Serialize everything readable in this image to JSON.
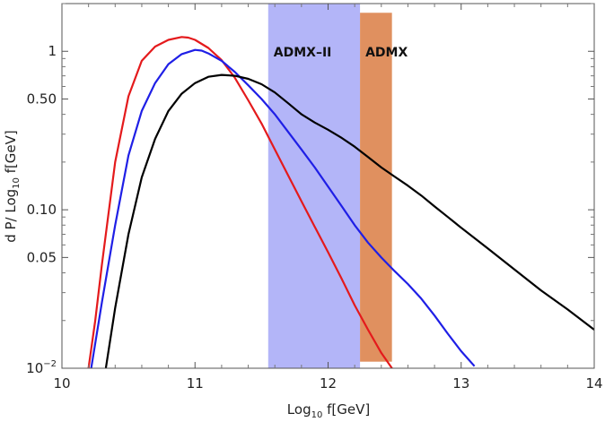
{
  "chart_data": {
    "type": "line",
    "title": "",
    "xlabel": {
      "pre": "Log",
      "sub": "10",
      "post": " f[GeV]"
    },
    "ylabel": {
      "pre": "d P/ Log",
      "sub": "10",
      "post": " f[GeV]"
    },
    "xlim": [
      10,
      14
    ],
    "ylim": [
      0.01,
      2.0
    ],
    "yscale": "log",
    "grid": false,
    "legend": "none",
    "x_ticks": [
      {
        "value": 10,
        "label": "10"
      },
      {
        "value": 11,
        "label": "11"
      },
      {
        "value": 12,
        "label": "12"
      },
      {
        "value": 13,
        "label": "13"
      },
      {
        "value": 14,
        "label": "14"
      }
    ],
    "y_ticks": [
      {
        "value": 1,
        "label": "1"
      },
      {
        "value": 0.5,
        "label": "0.50"
      },
      {
        "value": 0.1,
        "label": "0.10"
      },
      {
        "value": 0.05,
        "label": "0.05"
      }
    ],
    "y_tick_bottom": {
      "value": 0.01,
      "base": "10",
      "exp": "−2"
    },
    "bands": [
      {
        "label": "ADMX–II",
        "xmin": 11.55,
        "xmax": 12.24,
        "ymin": 0.01,
        "ymax": 2.0,
        "color": "#b3b5f8"
      },
      {
        "label": "ADMX",
        "xmin": 12.24,
        "xmax": 12.48,
        "ymin": 0.011,
        "ymax": 1.75,
        "color": "#e0905f"
      }
    ],
    "series": [
      {
        "color": "#e41a1c",
        "points": [
          [
            10.2,
            0.01
          ],
          [
            10.25,
            0.02
          ],
          [
            10.3,
            0.045
          ],
          [
            10.4,
            0.2
          ],
          [
            10.5,
            0.52
          ],
          [
            10.6,
            0.87
          ],
          [
            10.7,
            1.07
          ],
          [
            10.8,
            1.18
          ],
          [
            10.9,
            1.23
          ],
          [
            10.95,
            1.22
          ],
          [
            11.0,
            1.18
          ],
          [
            11.1,
            1.05
          ],
          [
            11.2,
            0.88
          ],
          [
            11.3,
            0.68
          ],
          [
            11.4,
            0.49
          ],
          [
            11.5,
            0.35
          ],
          [
            11.6,
            0.24
          ],
          [
            11.7,
            0.165
          ],
          [
            11.8,
            0.113
          ],
          [
            11.9,
            0.078
          ],
          [
            12.0,
            0.054
          ],
          [
            12.1,
            0.037
          ],
          [
            12.2,
            0.025
          ],
          [
            12.3,
            0.0175
          ],
          [
            12.4,
            0.0125
          ],
          [
            12.48,
            0.01
          ]
        ]
      },
      {
        "color": "#1f1fe6",
        "points": [
          [
            10.22,
            0.01
          ],
          [
            10.3,
            0.026
          ],
          [
            10.4,
            0.08
          ],
          [
            10.5,
            0.22
          ],
          [
            10.6,
            0.42
          ],
          [
            10.7,
            0.63
          ],
          [
            10.8,
            0.83
          ],
          [
            10.9,
            0.96
          ],
          [
            11.0,
            1.02
          ],
          [
            11.05,
            1.01
          ],
          [
            11.1,
            0.97
          ],
          [
            11.2,
            0.87
          ],
          [
            11.3,
            0.74
          ],
          [
            11.4,
            0.61
          ],
          [
            11.5,
            0.5
          ],
          [
            11.6,
            0.4
          ],
          [
            11.7,
            0.31
          ],
          [
            11.8,
            0.24
          ],
          [
            11.9,
            0.185
          ],
          [
            12.0,
            0.14
          ],
          [
            12.1,
            0.106
          ],
          [
            12.2,
            0.08
          ],
          [
            12.3,
            0.062
          ],
          [
            12.4,
            0.05
          ],
          [
            12.5,
            0.041
          ],
          [
            12.6,
            0.034
          ],
          [
            12.7,
            0.0275
          ],
          [
            12.8,
            0.0215
          ],
          [
            12.9,
            0.0165
          ],
          [
            13.0,
            0.0128
          ],
          [
            13.1,
            0.0103
          ]
        ]
      },
      {
        "color": "#000000",
        "points": [
          [
            10.33,
            0.01
          ],
          [
            10.4,
            0.024
          ],
          [
            10.5,
            0.07
          ],
          [
            10.6,
            0.16
          ],
          [
            10.7,
            0.28
          ],
          [
            10.8,
            0.42
          ],
          [
            10.9,
            0.54
          ],
          [
            11.0,
            0.63
          ],
          [
            11.1,
            0.69
          ],
          [
            11.2,
            0.71
          ],
          [
            11.3,
            0.7
          ],
          [
            11.4,
            0.67
          ],
          [
            11.5,
            0.62
          ],
          [
            11.6,
            0.55
          ],
          [
            11.7,
            0.47
          ],
          [
            11.8,
            0.4
          ],
          [
            11.9,
            0.355
          ],
          [
            12.0,
            0.32
          ],
          [
            12.1,
            0.285
          ],
          [
            12.2,
            0.25
          ],
          [
            12.3,
            0.215
          ],
          [
            12.4,
            0.185
          ],
          [
            12.5,
            0.162
          ],
          [
            12.6,
            0.142
          ],
          [
            12.7,
            0.123
          ],
          [
            12.8,
            0.105
          ],
          [
            12.9,
            0.09
          ],
          [
            13.0,
            0.077
          ],
          [
            13.2,
            0.057
          ],
          [
            13.4,
            0.042
          ],
          [
            13.6,
            0.031
          ],
          [
            13.8,
            0.0235
          ],
          [
            14.0,
            0.0175
          ]
        ]
      }
    ]
  }
}
